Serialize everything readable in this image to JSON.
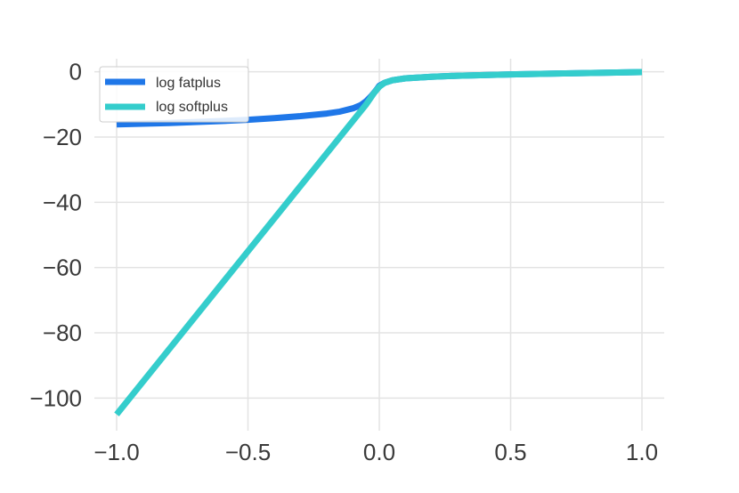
{
  "chart_data": {
    "type": "line",
    "title": "",
    "xlabel": "",
    "ylabel": "",
    "xlim": [
      -1.0,
      1.0
    ],
    "ylim": [
      -110,
      4
    ],
    "x_ticks": [
      -1.0,
      -0.5,
      0.0,
      0.5,
      1.0
    ],
    "x_tick_labels": [
      "−1.0",
      "−0.5",
      "0.0",
      "0.5",
      "1.0"
    ],
    "y_ticks": [
      0,
      -20,
      -40,
      -60,
      -80,
      -100
    ],
    "y_tick_labels": [
      "0",
      "−20",
      "−40",
      "−60",
      "−80",
      "−100"
    ],
    "grid": true,
    "legend_position": "top-left",
    "series": [
      {
        "name": "log fatplus",
        "color": "#1f77e8",
        "x": [
          -1.0,
          -0.9,
          -0.8,
          -0.7,
          -0.6,
          -0.5,
          -0.4,
          -0.3,
          -0.2,
          -0.15,
          -0.1,
          -0.07,
          -0.05,
          -0.03,
          -0.01,
          0.0,
          0.02,
          0.05,
          0.1,
          0.2,
          0.3,
          0.5,
          0.7,
          1.0
        ],
        "y": [
          -16.1,
          -15.9,
          -15.7,
          -15.4,
          -15.1,
          -14.7,
          -14.2,
          -13.6,
          -12.8,
          -12.2,
          -11.2,
          -10.2,
          -9.0,
          -7.4,
          -5.4,
          -4.3,
          -3.4,
          -2.6,
          -2.0,
          -1.5,
          -1.2,
          -0.8,
          -0.5,
          -0.1
        ]
      },
      {
        "name": "log softplus",
        "color": "#34cdcc",
        "x": [
          -1.0,
          -0.5,
          -0.2,
          -0.1,
          -0.05,
          -0.02,
          0.0,
          0.02,
          0.05,
          0.1,
          0.2,
          0.3,
          0.5,
          0.7,
          1.0
        ],
        "y": [
          -105.0,
          -55.0,
          -25.0,
          -15.0,
          -10.0,
          -6.5,
          -4.6,
          -3.4,
          -2.6,
          -2.0,
          -1.5,
          -1.2,
          -0.8,
          -0.5,
          -0.1
        ]
      }
    ]
  }
}
